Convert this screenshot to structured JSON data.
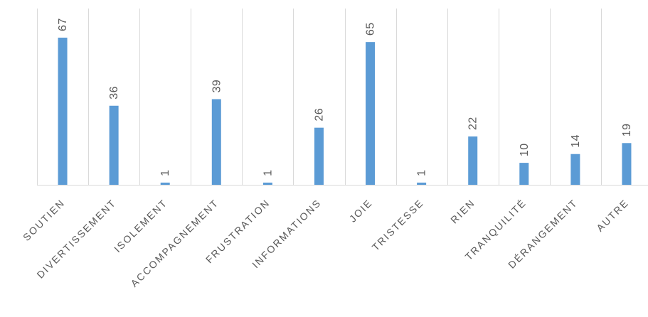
{
  "chart_data": {
    "type": "bar",
    "title": "",
    "xlabel": "",
    "ylabel": "",
    "categories": [
      "SOUTIEN",
      "DIVERTISSEMENT",
      "ISOLEMENT",
      "ACCOMPAGNEMENT",
      "FRUSTRATION",
      "INFORMATIONS",
      "JOIE",
      "TRISTESSE",
      "RIEN",
      "TRANQUILITÉ",
      "DÉRANGEMENT",
      "AUTRE"
    ],
    "values": [
      67,
      36,
      1,
      39,
      1,
      26,
      65,
      1,
      22,
      10,
      14,
      19
    ],
    "ylim": [
      0,
      80
    ],
    "grid": "vertical category separators",
    "legend": "none",
    "data_labels": true,
    "colors": {
      "bar": "#5b9bd5",
      "grid": "#d9d9d9",
      "text": "#595959"
    }
  }
}
